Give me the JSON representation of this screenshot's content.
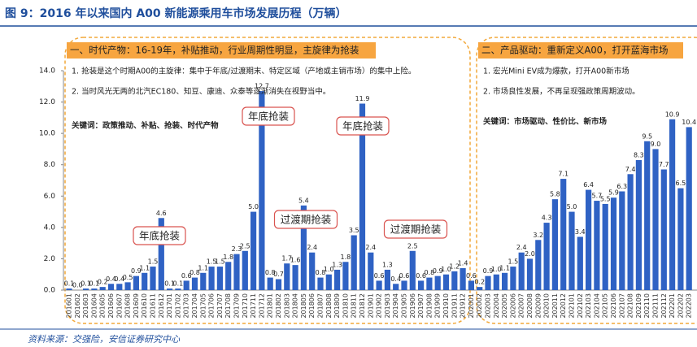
{
  "chart_data": {
    "type": "bar",
    "title": "图 9：2016 年以来国内 A00 新能源乘用车市场发展历程（万辆）",
    "source": "资料来源：交强险，安信证券研究中心",
    "color": "#2f62c4",
    "categories": [
      "201601",
      "201602",
      "201603",
      "201604",
      "201605",
      "201606",
      "201607",
      "201608",
      "201609",
      "201610",
      "201611",
      "201612",
      "201701",
      "201702",
      "201703",
      "201704",
      "201705",
      "201706",
      "201707",
      "201708",
      "201709",
      "201710",
      "201711",
      "201712",
      "201801",
      "201802",
      "201803",
      "201804",
      "201805",
      "201806",
      "201807",
      "201808",
      "201809",
      "201810",
      "201811",
      "201812",
      "201901",
      "201902",
      "201903",
      "201904",
      "201905",
      "201906",
      "201907",
      "201908",
      "201909",
      "201910",
      "201911",
      "201912",
      "202001",
      "202002",
      "202003",
      "202004",
      "202005",
      "202006",
      "202007",
      "202008",
      "202009",
      "202010",
      "202011",
      "202012",
      "202101",
      "202102",
      "202103",
      "202104",
      "202105",
      "202106",
      "202107",
      "202108",
      "202109",
      "202110",
      "202111",
      "202112",
      "202201",
      "202202",
      "202203"
    ],
    "values": [
      0.1,
      0.0,
      0.1,
      0.1,
      0.2,
      0.4,
      0.4,
      0.5,
      0.9,
      1.1,
      1.5,
      4.6,
      0.1,
      0.1,
      0.6,
      0.8,
      1.1,
      1.5,
      1.5,
      1.8,
      2.3,
      2.5,
      5.0,
      12.7,
      0.8,
      0.7,
      1.7,
      1.6,
      5.4,
      2.4,
      0.8,
      1.0,
      1.3,
      1.8,
      3.5,
      11.9,
      2.4,
      0.6,
      1.3,
      0.4,
      0.6,
      2.5,
      0.6,
      0.8,
      0.9,
      1.0,
      1.2,
      1.4,
      0.6,
      0.2,
      0.9,
      1.0,
      1.1,
      1.5,
      2.4,
      2.0,
      3.2,
      4.3,
      5.8,
      7.1,
      5.0,
      3.4,
      6.4,
      5.7,
      5.5,
      5.9,
      6.3,
      7.4,
      8.3,
      9.5,
      9.0,
      7.7,
      10.9,
      6.5,
      10.4
    ],
    "value_labels": [
      "0.1",
      "0.0",
      "0.1",
      "0.1",
      "0.2",
      "0.4",
      "0.4",
      "0.5",
      "0.9",
      "1.1",
      "1.5",
      "4.6",
      "0.1",
      "0.1",
      "0.6",
      "0.8",
      "1.1",
      "1.5",
      "1.5",
      "1.8",
      "2.3",
      "2.5",
      "5.0",
      "12.7",
      "0.8",
      "0.7",
      "1.7",
      "1.6",
      "5.4",
      "2.4",
      "0.8",
      "1.0",
      "1.3",
      "1.8",
      "3.5",
      "11.9",
      "2.4",
      "0.6",
      "1.3",
      "0.4",
      "0.6",
      "2.5",
      "0.6",
      "0.8",
      "0.9",
      "1.0",
      "1.2",
      "1.4",
      "0.6",
      "0.2",
      "0.9",
      "1.0",
      "1.1",
      "1.5",
      "2.4",
      "2.0",
      "3.2",
      "4.3",
      "5.8",
      "7.1",
      "5.0",
      "3.4",
      "6.4",
      "5.7",
      "5.5",
      "5.9",
      "6.3",
      "7.4",
      "8.3",
      "9.5",
      "9.0",
      "7.7",
      "10.9",
      "6.5",
      "10.4"
    ],
    "ylim": [
      0,
      14
    ],
    "yticks": [
      {
        "value": 0,
        "label": "0.0"
      },
      {
        "value": 2,
        "label": "2.0"
      },
      {
        "value": 4,
        "label": "4.0"
      },
      {
        "value": 6,
        "label": "6.0"
      },
      {
        "value": 8,
        "label": "8.0"
      },
      {
        "value": 10,
        "label": "10.0"
      },
      {
        "value": 12,
        "label": "12.0"
      },
      {
        "value": 14,
        "label": "14.0"
      }
    ],
    "panels": [
      {
        "heading": "一、时代产物：16-19年，补贴推动，行业周期性明显，主旋律为抢装",
        "points": [
          "1.  抢装是这个时期A00的主旋律：集中于年底/过渡期末、特定区域（产地或主销市场）的集中上险。",
          "2.  当时风光无两的北汽EC180、知豆、康迪、众泰等逐渐消失在视野当中。"
        ],
        "keywords": "关键词：政策推动、补贴、抢装、时代产物"
      },
      {
        "heading": "二、产品驱动：重新定义A00，打开蓝海市场",
        "points": [
          "1.  宏光Mini EV成为爆款，打开A00新市场",
          "2.  市场良性发展，不再呈现强政策周期波动。"
        ],
        "keywords": "关键词：市场驱动、性价比、新市场"
      }
    ],
    "annotations": [
      "年底抢装",
      "年底抢装",
      "年底抢装",
      "过渡期抢装",
      "过渡期抢装"
    ]
  }
}
